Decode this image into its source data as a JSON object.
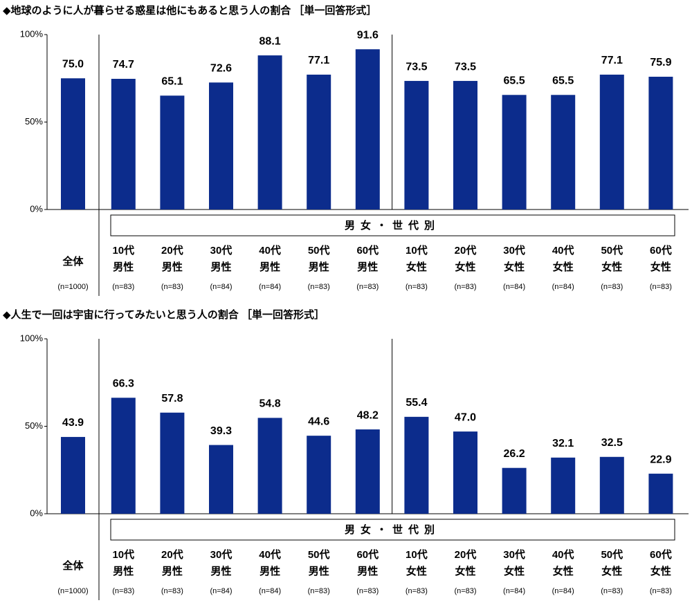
{
  "chart_data": [
    {
      "type": "bar",
      "title": "◆地球のように人が暮らせる惑星は他にもあると思う人の割合 ［単一回答形式］",
      "group_label": "男女・世代別",
      "categories": [
        [
          "全体"
        ],
        [
          "10代",
          "男性"
        ],
        [
          "20代",
          "男性"
        ],
        [
          "30代",
          "男性"
        ],
        [
          "40代",
          "男性"
        ],
        [
          "50代",
          "男性"
        ],
        [
          "60代",
          "男性"
        ],
        [
          "10代",
          "女性"
        ],
        [
          "20代",
          "女性"
        ],
        [
          "30代",
          "女性"
        ],
        [
          "40代",
          "女性"
        ],
        [
          "50代",
          "女性"
        ],
        [
          "60代",
          "女性"
        ]
      ],
      "n_labels": [
        "(n=1000)",
        "(n=83)",
        "(n=83)",
        "(n=84)",
        "(n=84)",
        "(n=83)",
        "(n=83)",
        "(n=83)",
        "(n=83)",
        "(n=84)",
        "(n=84)",
        "(n=83)",
        "(n=83)"
      ],
      "values": [
        75.0,
        74.7,
        65.1,
        72.6,
        88.1,
        77.1,
        91.6,
        73.5,
        73.5,
        65.5,
        65.5,
        77.1,
        75.9
      ],
      "value_labels": [
        "75.0",
        "74.7",
        "65.1",
        "72.6",
        "88.1",
        "77.1",
        "91.6",
        "73.5",
        "73.5",
        "65.5",
        "65.5",
        "77.1",
        "75.9"
      ],
      "color": "#0c2c8c",
      "ylim": [
        0,
        100
      ],
      "yticks": [
        {
          "value": 0,
          "label": "0%"
        },
        {
          "value": 50,
          "label": "50%"
        },
        {
          "value": 100,
          "label": "100%"
        }
      ]
    },
    {
      "type": "bar",
      "title": "◆人生で一回は宇宙に行ってみたいと思う人の割合 ［単一回答形式］",
      "group_label": "男女・世代別",
      "categories": [
        [
          "全体"
        ],
        [
          "10代",
          "男性"
        ],
        [
          "20代",
          "男性"
        ],
        [
          "30代",
          "男性"
        ],
        [
          "40代",
          "男性"
        ],
        [
          "50代",
          "男性"
        ],
        [
          "60代",
          "男性"
        ],
        [
          "10代",
          "女性"
        ],
        [
          "20代",
          "女性"
        ],
        [
          "30代",
          "女性"
        ],
        [
          "40代",
          "女性"
        ],
        [
          "50代",
          "女性"
        ],
        [
          "60代",
          "女性"
        ]
      ],
      "n_labels": [
        "(n=1000)",
        "(n=83)",
        "(n=83)",
        "(n=84)",
        "(n=84)",
        "(n=83)",
        "(n=83)",
        "(n=83)",
        "(n=83)",
        "(n=84)",
        "(n=84)",
        "(n=83)",
        "(n=83)"
      ],
      "values": [
        43.9,
        66.3,
        57.8,
        39.3,
        54.8,
        44.6,
        48.2,
        55.4,
        47.0,
        26.2,
        32.1,
        32.5,
        22.9
      ],
      "value_labels": [
        "43.9",
        "66.3",
        "57.8",
        "39.3",
        "54.8",
        "44.6",
        "48.2",
        "55.4",
        "47.0",
        "26.2",
        "32.1",
        "32.5",
        "22.9"
      ],
      "color": "#0c2c8c",
      "ylim": [
        0,
        100
      ],
      "yticks": [
        {
          "value": 0,
          "label": "0%"
        },
        {
          "value": 50,
          "label": "50%"
        },
        {
          "value": 100,
          "label": "100%"
        }
      ]
    }
  ]
}
